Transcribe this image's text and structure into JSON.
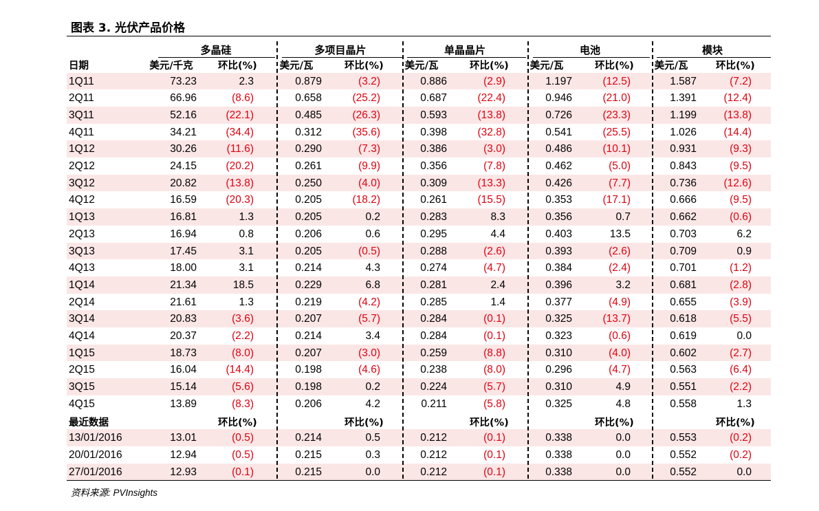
{
  "title": "图表 3. 光伏产品价格",
  "groups": [
    "多晶硅",
    "多项目晶片",
    "单晶晶片",
    "电池",
    "模块"
  ],
  "date_header": "日期",
  "unit_headers": [
    "美元/千克",
    "美元/瓦",
    "美元/瓦",
    "美元/瓦",
    "美元/瓦"
  ],
  "change_header": "环比(%)",
  "quarterly": [
    {
      "date": "1Q11",
      "v": [
        "73.23",
        "2.3",
        "0.879",
        "(3.2)",
        "0.886",
        "(2.9)",
        "1.197",
        "(12.5)",
        "1.587",
        "(7.2)"
      ]
    },
    {
      "date": "2Q11",
      "v": [
        "66.96",
        "(8.6)",
        "0.658",
        "(25.2)",
        "0.687",
        "(22.4)",
        "0.946",
        "(21.0)",
        "1.391",
        "(12.4)"
      ]
    },
    {
      "date": "3Q11",
      "v": [
        "52.16",
        "(22.1)",
        "0.485",
        "(26.3)",
        "0.593",
        "(13.8)",
        "0.726",
        "(23.3)",
        "1.199",
        "(13.8)"
      ]
    },
    {
      "date": "4Q11",
      "v": [
        "34.21",
        "(34.4)",
        "0.312",
        "(35.6)",
        "0.398",
        "(32.8)",
        "0.541",
        "(25.5)",
        "1.026",
        "(14.4)"
      ]
    },
    {
      "date": "1Q12",
      "v": [
        "30.26",
        "(11.6)",
        "0.290",
        "(7.3)",
        "0.386",
        "(3.0)",
        "0.486",
        "(10.1)",
        "0.931",
        "(9.3)"
      ]
    },
    {
      "date": "2Q12",
      "v": [
        "24.15",
        "(20.2)",
        "0.261",
        "(9.9)",
        "0.356",
        "(7.8)",
        "0.462",
        "(5.0)",
        "0.843",
        "(9.5)"
      ]
    },
    {
      "date": "3Q12",
      "v": [
        "20.82",
        "(13.8)",
        "0.250",
        "(4.0)",
        "0.309",
        "(13.3)",
        "0.426",
        "(7.7)",
        "0.736",
        "(12.6)"
      ]
    },
    {
      "date": "4Q12",
      "v": [
        "16.59",
        "(20.3)",
        "0.205",
        "(18.2)",
        "0.261",
        "(15.5)",
        "0.353",
        "(17.1)",
        "0.666",
        "(9.5)"
      ]
    },
    {
      "date": "1Q13",
      "v": [
        "16.81",
        "1.3",
        "0.205",
        "0.2",
        "0.283",
        "8.3",
        "0.356",
        "0.7",
        "0.662",
        "(0.6)"
      ]
    },
    {
      "date": "2Q13",
      "v": [
        "16.94",
        "0.8",
        "0.206",
        "0.6",
        "0.295",
        "4.4",
        "0.403",
        "13.5",
        "0.703",
        "6.2"
      ]
    },
    {
      "date": "3Q13",
      "v": [
        "17.45",
        "3.1",
        "0.205",
        "(0.5)",
        "0.288",
        "(2.6)",
        "0.393",
        "(2.6)",
        "0.709",
        "0.9"
      ]
    },
    {
      "date": "4Q13",
      "v": [
        "18.00",
        "3.1",
        "0.214",
        "4.3",
        "0.274",
        "(4.7)",
        "0.384",
        "(2.4)",
        "0.701",
        "(1.2)"
      ]
    },
    {
      "date": "1Q14",
      "v": [
        "21.34",
        "18.5",
        "0.229",
        "6.8",
        "0.281",
        "2.4",
        "0.396",
        "3.2",
        "0.681",
        "(2.8)"
      ]
    },
    {
      "date": "2Q14",
      "v": [
        "21.61",
        "1.3",
        "0.219",
        "(4.2)",
        "0.285",
        "1.4",
        "0.377",
        "(4.9)",
        "0.655",
        "(3.9)"
      ]
    },
    {
      "date": "3Q14",
      "v": [
        "20.83",
        "(3.6)",
        "0.207",
        "(5.7)",
        "0.284",
        "(0.1)",
        "0.325",
        "(13.7)",
        "0.618",
        "(5.5)"
      ]
    },
    {
      "date": "4Q14",
      "v": [
        "20.37",
        "(2.2)",
        "0.214",
        "3.4",
        "0.284",
        "(0.1)",
        "0.323",
        "(0.6)",
        "0.619",
        "0.0"
      ]
    },
    {
      "date": "1Q15",
      "v": [
        "18.73",
        "(8.0)",
        "0.207",
        "(3.0)",
        "0.259",
        "(8.8)",
        "0.310",
        "(4.0)",
        "0.602",
        "(2.7)"
      ]
    },
    {
      "date": "2Q15",
      "v": [
        "16.04",
        "(14.4)",
        "0.198",
        "(4.6)",
        "0.238",
        "(8.0)",
        "0.296",
        "(4.7)",
        "0.563",
        "(6.4)"
      ]
    },
    {
      "date": "3Q15",
      "v": [
        "15.14",
        "(5.6)",
        "0.198",
        "0.2",
        "0.224",
        "(5.7)",
        "0.310",
        "4.9",
        "0.551",
        "(2.2)"
      ]
    },
    {
      "date": "4Q15",
      "v": [
        "13.89",
        "(8.3)",
        "0.206",
        "4.2",
        "0.211",
        "(5.8)",
        "0.325",
        "4.8",
        "0.558",
        "1.3"
      ]
    }
  ],
  "latest_label": "最近数据",
  "latest": [
    {
      "date": "13/01/2016",
      "v": [
        "13.01",
        "(0.5)",
        "0.214",
        "0.5",
        "0.212",
        "(0.1)",
        "0.338",
        "0.0",
        "0.553",
        "(0.2)"
      ]
    },
    {
      "date": "20/01/2016",
      "v": [
        "12.94",
        "(0.5)",
        "0.215",
        "0.3",
        "0.212",
        "(0.1)",
        "0.338",
        "0.0",
        "0.552",
        "(0.2)"
      ]
    },
    {
      "date": "27/01/2016",
      "v": [
        "12.93",
        "(0.1)",
        "0.215",
        "0.0",
        "0.212",
        "(0.1)",
        "0.338",
        "0.0",
        "0.552",
        "0.0"
      ]
    }
  ],
  "colors": {
    "negative": "#e0000f",
    "row_shade": "#fbe6e6"
  },
  "source": "资料来源: PVInsights"
}
